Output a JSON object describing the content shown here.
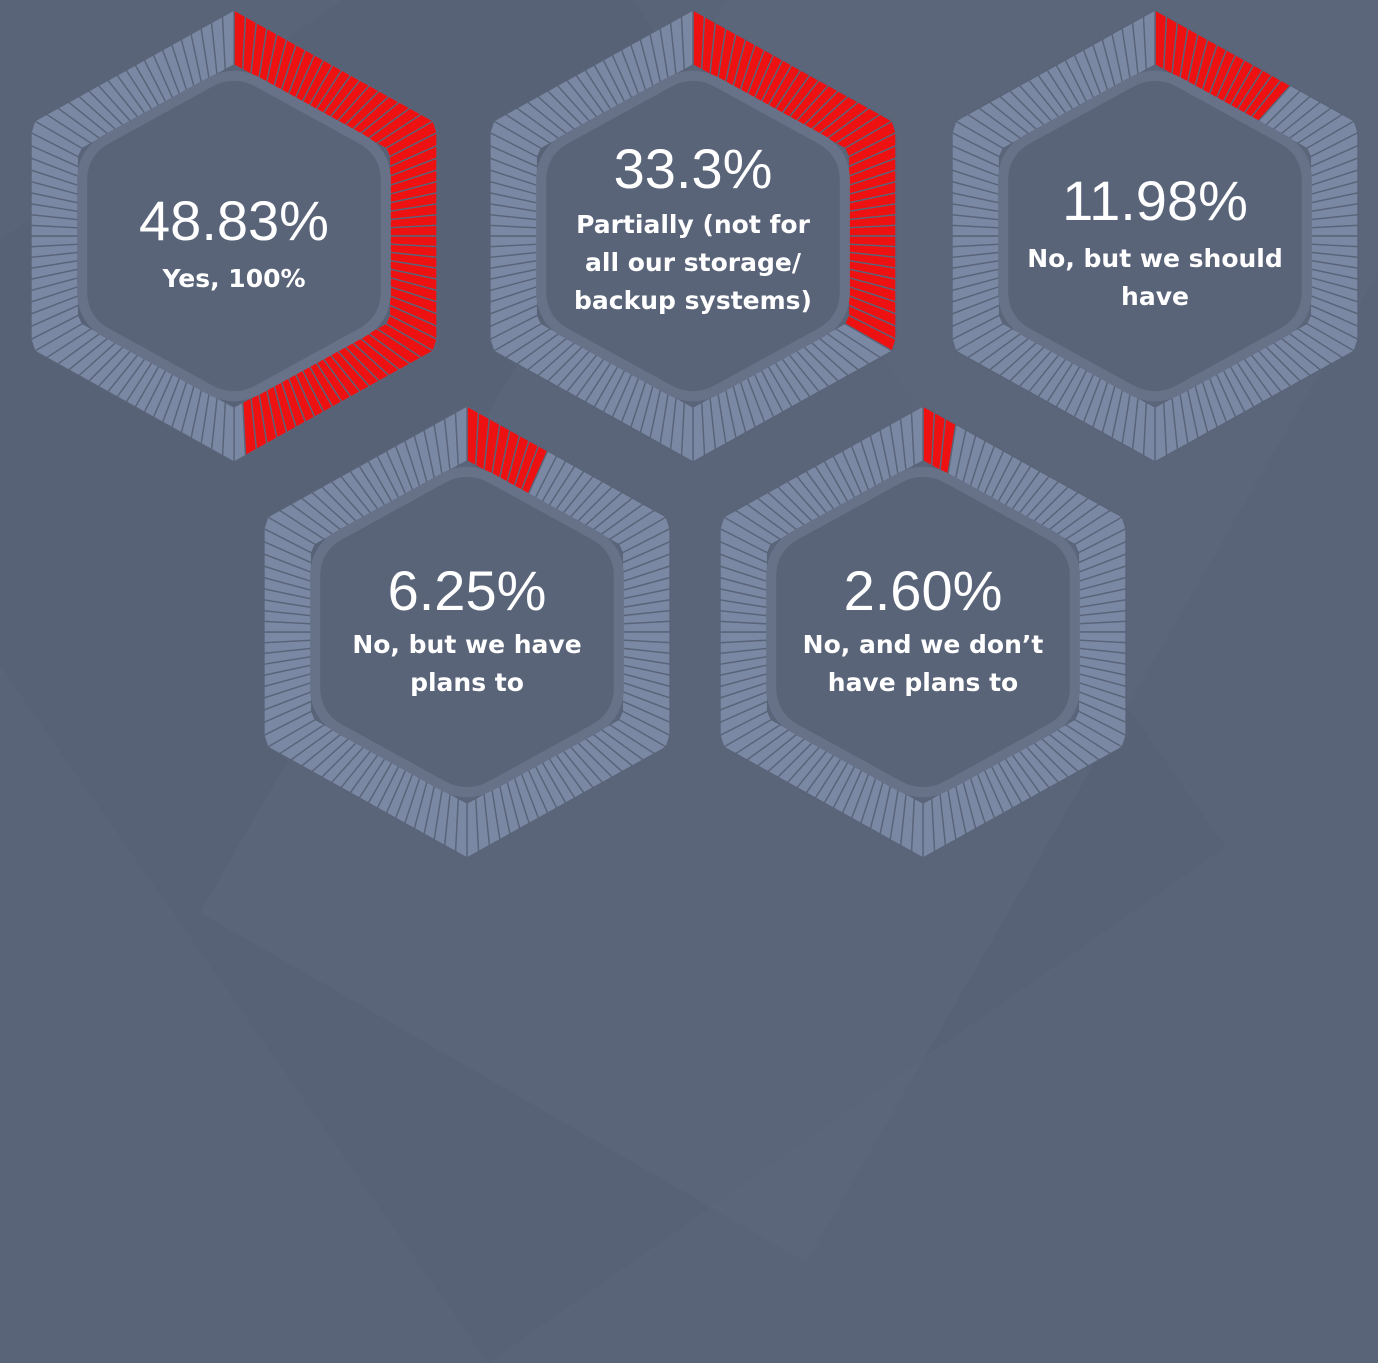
{
  "chart_data": [
    {
      "type": "gauge",
      "value_label": "48.83%",
      "value": 48.83,
      "label_lines": [
        "Yes, 100%"
      ]
    },
    {
      "type": "gauge",
      "value_label": "33.3%",
      "value": 33.3,
      "label_lines": [
        "Partially (not for",
        "all our storage/",
        "backup systems)"
      ]
    },
    {
      "type": "gauge",
      "value_label": "11.98%",
      "value": 11.98,
      "label_lines": [
        "No, but we should",
        "have"
      ]
    },
    {
      "type": "gauge",
      "value_label": "6.25%",
      "value": 6.25,
      "label_lines": [
        "No, but we have",
        "plans to"
      ]
    },
    {
      "type": "gauge",
      "value_label": "2.60%",
      "value": 2.6,
      "label_lines": [
        "No, and we don’t",
        "have plans to"
      ]
    }
  ],
  "colors": {
    "background": "#5a6479",
    "inner_fill": "#5a6479",
    "inner_border": "#677289",
    "segment_empty": "#7b88a4",
    "segment_filled": "#ee1111",
    "segment_line": "#5a6479",
    "text": "#ffffff"
  }
}
